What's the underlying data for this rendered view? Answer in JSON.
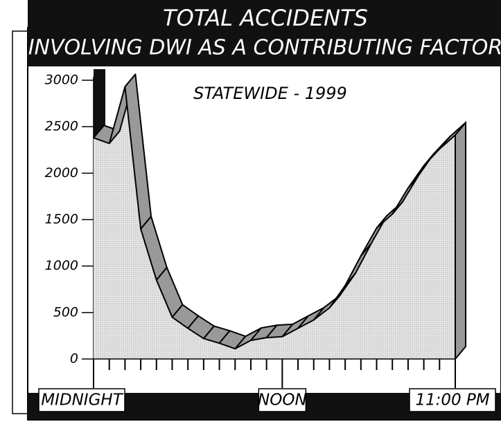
{
  "chart_data": {
    "type": "area",
    "title": "TOTAL ACCIDENTS",
    "subtitle": "INVOLVING DWI AS A CONTRIBUTING FACTOR",
    "annotation": "STATEWIDE - 1999",
    "categories": [
      "MIDNIGHT",
      null,
      null,
      null,
      null,
      null,
      null,
      null,
      null,
      null,
      null,
      null,
      "NOON",
      null,
      null,
      null,
      null,
      null,
      null,
      null,
      null,
      null,
      null,
      "11:00 PM"
    ],
    "values": [
      2380,
      2320,
      2930,
      1400,
      850,
      450,
      330,
      220,
      170,
      110,
      200,
      230,
      240,
      330,
      420,
      550,
      790,
      1110,
      1410,
      1560,
      1840,
      2080,
      2260,
      2410
    ],
    "ylim": [
      0,
      3000
    ],
    "yticks": [
      0,
      500,
      1000,
      1500,
      2000,
      2500,
      3000
    ],
    "color": "#999999"
  }
}
